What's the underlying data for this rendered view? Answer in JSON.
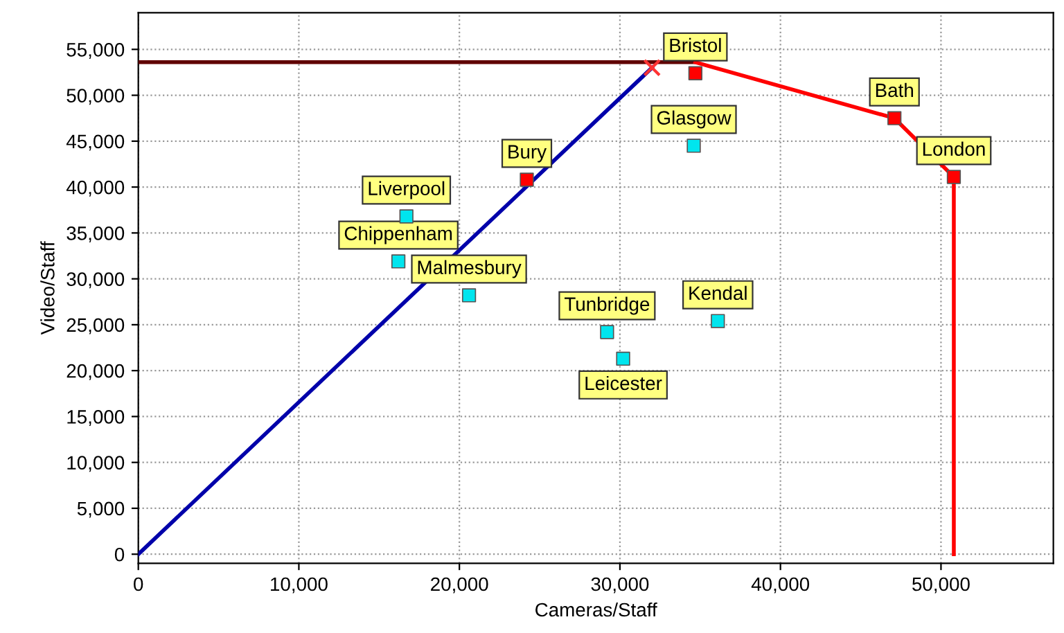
{
  "chart_data": {
    "type": "scatter",
    "xlabel": "Cameras/Staff",
    "ylabel": "Video/Staff",
    "xlim": [
      0,
      57000
    ],
    "ylim": [
      -1000,
      59000
    ],
    "xticks": [
      {
        "value": 0,
        "label": "0"
      },
      {
        "value": 10000,
        "label": "10,000"
      },
      {
        "value": 20000,
        "label": "20,000"
      },
      {
        "value": 30000,
        "label": "30,000"
      },
      {
        "value": 40000,
        "label": "40,000"
      },
      {
        "value": 50000,
        "label": "50,000"
      }
    ],
    "yticks": [
      {
        "value": 0,
        "label": "0"
      },
      {
        "value": 5000,
        "label": "5,000"
      },
      {
        "value": 10000,
        "label": "10,000"
      },
      {
        "value": 15000,
        "label": "15,000"
      },
      {
        "value": 20000,
        "label": "20,000"
      },
      {
        "value": 25000,
        "label": "25,000"
      },
      {
        "value": 30000,
        "label": "30,000"
      },
      {
        "value": 35000,
        "label": "35,000"
      },
      {
        "value": 40000,
        "label": "40,000"
      },
      {
        "value": 45000,
        "label": "45,000"
      },
      {
        "value": 50000,
        "label": "50,000"
      },
      {
        "value": 55000,
        "label": "55,000"
      }
    ],
    "grid": true,
    "marker": "square",
    "legend": false,
    "series": [
      {
        "type": "line",
        "color": "#600000",
        "x": [
          0,
          34700
        ],
        "values": [
          53600,
          53600
        ],
        "marker": "none"
      },
      {
        "type": "line",
        "color": "#ff0000",
        "x": [
          34700,
          47100,
          50800,
          50800
        ],
        "values": [
          53600,
          47500,
          41100,
          0
        ],
        "marker": "none"
      },
      {
        "type": "line",
        "color": "#0000aa",
        "x": [
          0,
          32000
        ],
        "values": [
          0,
          53000
        ],
        "marker": "none"
      },
      {
        "type": "scatter",
        "color": "#ff3333",
        "x": [
          32000
        ],
        "values": [
          53000
        ],
        "marker": "cross"
      },
      {
        "color": "#ff0000",
        "x": [
          24200,
          34700,
          47100,
          50800
        ],
        "values": [
          40800,
          52400,
          47500,
          41100
        ]
      },
      {
        "color": "#00e5ee",
        "x": [
          16700,
          16200,
          20600,
          34600,
          29200,
          30200,
          36100
        ],
        "values": [
          36800,
          31900,
          28200,
          44500,
          24200,
          21300,
          25400
        ]
      }
    ],
    "annotations": [
      {
        "text": "Bury",
        "x": 24200,
        "y": 40800
      },
      {
        "text": "Bristol",
        "x": 34700,
        "y": 52400
      },
      {
        "text": "Bath",
        "x": 47100,
        "y": 47500
      },
      {
        "text": "London",
        "x": 50800,
        "y": 41100
      },
      {
        "text": "Liverpool",
        "x": 16700,
        "y": 36800
      },
      {
        "text": "Chippenham",
        "x": 16200,
        "y": 31900
      },
      {
        "text": "Malmesbury",
        "x": 20600,
        "y": 28200
      },
      {
        "text": "Glasgow",
        "x": 34600,
        "y": 44500
      },
      {
        "text": "Tunbridge",
        "x": 29200,
        "y": 24200
      },
      {
        "text": "Leicester",
        "x": 30200,
        "y": 21300
      },
      {
        "text": "Kendal",
        "x": 36100,
        "y": 25400
      }
    ]
  }
}
